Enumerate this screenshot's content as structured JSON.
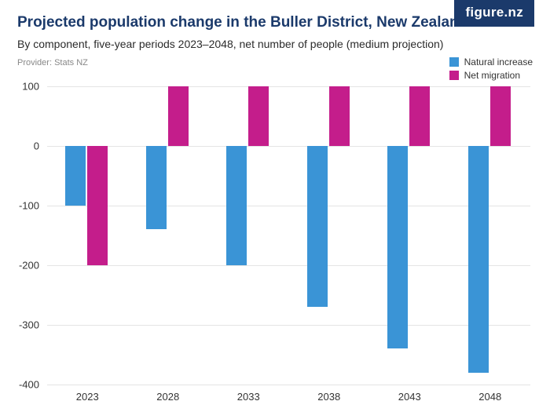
{
  "logo_text": "figure.nz",
  "title": "Projected population change in the Buller District, New Zealand",
  "subtitle": "By component, five-year periods 2023–2048, net number of people (medium projection)",
  "provider": "Provider: Stats NZ",
  "chart": {
    "type": "bar",
    "categories": [
      "2023",
      "2028",
      "2033",
      "2038",
      "2043",
      "2048"
    ],
    "series": [
      {
        "name": "Natural increase",
        "color": "#3a94d6",
        "values": [
          -100,
          -140,
          -200,
          -270,
          -340,
          -380
        ]
      },
      {
        "name": "Net migration",
        "color": "#c41d8b",
        "values": [
          -200,
          100,
          100,
          100,
          100,
          100
        ]
      }
    ],
    "ylim": [
      -400,
      100
    ],
    "ytick_step": 100,
    "yticks": [
      100,
      0,
      -100,
      -200,
      -300,
      -400
    ],
    "background_color": "#ffffff",
    "grid_color": "#e4e4e4",
    "bar_group_width": 0.55,
    "title_fontsize": 19,
    "title_color": "#1b3a6b",
    "subtitle_fontsize": 14,
    "subtitle_color": "#2b2b2b",
    "axis_fontsize": 13,
    "axis_color": "#333333",
    "provider_fontsize": 11,
    "provider_color": "#888888",
    "legend_fontsize": 12
  }
}
